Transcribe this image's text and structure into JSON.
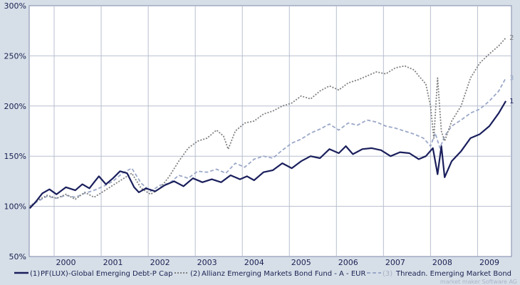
{
  "chart_data": {
    "type": "line",
    "ylim": [
      50,
      300
    ],
    "y_ticks": [
      50,
      100,
      150,
      200,
      250,
      300
    ],
    "y_tick_labels": [
      "50%",
      "100%",
      "150%",
      "200%",
      "250%",
      "300%"
    ],
    "y_gridlines": [
      100,
      150,
      200,
      250
    ],
    "xlim": [
      1999.72,
      2009.97
    ],
    "x_ticks": [
      2000,
      2001,
      2002,
      2003,
      2004,
      2005,
      2006,
      2007,
      2008,
      2009
    ],
    "x_tick_labels": [
      "2000",
      "2001",
      "2002",
      "2003",
      "2004",
      "2005",
      "2006",
      "2007",
      "2008",
      "2009"
    ],
    "x_gridlines": [
      2000.25,
      2001.25,
      2002.25,
      2003.25,
      2004.25,
      2005.25,
      2006.25,
      2007.25,
      2008.25,
      2009.25
    ],
    "grid": true,
    "legend_position": "bottom",
    "series": [
      {
        "name": "PF(LUX)-Global Emerging Debt-P Cap",
        "legend_prefix": "(1)",
        "end_label": "1",
        "color": "#1a1f5c",
        "dash": "solid",
        "x": [
          1999.73,
          1999.85,
          2000.0,
          2000.15,
          2000.3,
          2000.5,
          2000.7,
          2000.85,
          2001.0,
          2001.1,
          2001.2,
          2001.35,
          2001.5,
          2001.65,
          2001.8,
          2001.95,
          2002.05,
          2002.2,
          2002.4,
          2002.6,
          2002.8,
          2003.0,
          2003.2,
          2003.4,
          2003.6,
          2003.8,
          2004.0,
          2004.2,
          2004.35,
          2004.5,
          2004.7,
          2004.9,
          2005.1,
          2005.3,
          2005.5,
          2005.7,
          2005.9,
          2006.1,
          2006.3,
          2006.45,
          2006.6,
          2006.8,
          2007.0,
          2007.2,
          2007.4,
          2007.6,
          2007.8,
          2008.0,
          2008.15,
          2008.3,
          2008.4,
          2008.48,
          2008.55,
          2008.7,
          2008.9,
          2009.1,
          2009.3,
          2009.5,
          2009.7,
          2009.85
        ],
        "values": [
          98,
          104,
          113,
          117,
          112,
          119,
          116,
          122,
          118,
          124,
          130,
          122,
          128,
          135,
          133,
          119,
          114,
          118,
          115,
          121,
          125,
          120,
          128,
          124,
          127,
          124,
          131,
          127,
          130,
          126,
          134,
          136,
          143,
          138,
          145,
          150,
          148,
          157,
          153,
          160,
          152,
          157,
          158,
          156,
          150,
          154,
          153,
          147,
          150,
          158,
          132,
          160,
          129,
          145,
          155,
          168,
          172,
          180,
          193,
          205
        ]
      },
      {
        "name": "Allianz Emerging Markets Bond Fund - A - EUR",
        "legend_prefix": "(2)",
        "end_label": "2",
        "color": "#808080",
        "dash": "dotted",
        "x": [
          1999.73,
          1999.9,
          2000.1,
          2000.3,
          2000.5,
          2000.7,
          2000.9,
          2001.1,
          2001.3,
          2001.5,
          2001.7,
          2001.9,
          2002.1,
          2002.3,
          2002.5,
          2002.7,
          2002.9,
          2003.1,
          2003.3,
          2003.5,
          2003.7,
          2003.85,
          2003.95,
          2004.1,
          2004.3,
          2004.5,
          2004.7,
          2004.9,
          2005.1,
          2005.3,
          2005.5,
          2005.7,
          2005.9,
          2006.1,
          2006.3,
          2006.5,
          2006.7,
          2006.9,
          2007.1,
          2007.3,
          2007.5,
          2007.7,
          2007.9,
          2008.0,
          2008.15,
          2008.25,
          2008.32,
          2008.4,
          2008.48,
          2008.55,
          2008.7,
          2008.9,
          2009.1,
          2009.3,
          2009.5,
          2009.7,
          2009.85
        ],
        "values": [
          100,
          106,
          111,
          108,
          112,
          107,
          114,
          109,
          115,
          121,
          127,
          133,
          118,
          112,
          118,
          130,
          145,
          158,
          165,
          168,
          176,
          170,
          157,
          175,
          183,
          185,
          192,
          195,
          200,
          203,
          210,
          207,
          215,
          220,
          216,
          223,
          226,
          230,
          234,
          232,
          238,
          240,
          236,
          230,
          222,
          200,
          168,
          228,
          175,
          165,
          185,
          200,
          228,
          243,
          252,
          260,
          268
        ]
      },
      {
        "name": "Threadn. Emerging Market Bond",
        "legend_prefix": "(3)",
        "end_label": "3",
        "color": "#9ba8c8",
        "dash": "dashed",
        "x": [
          1999.73,
          1999.9,
          2000.1,
          2000.3,
          2000.5,
          2000.7,
          2000.9,
          2001.1,
          2001.3,
          2001.5,
          2001.7,
          2001.9,
          2002.1,
          2002.3,
          2002.5,
          2002.7,
          2002.9,
          2003.1,
          2003.3,
          2003.5,
          2003.7,
          2003.9,
          2004.1,
          2004.3,
          2004.5,
          2004.7,
          2004.9,
          2005.1,
          2005.3,
          2005.5,
          2005.7,
          2005.9,
          2006.1,
          2006.3,
          2006.5,
          2006.7,
          2006.9,
          2007.1,
          2007.3,
          2007.5,
          2007.7,
          2007.9,
          2008.1,
          2008.25,
          2008.35,
          2008.45,
          2008.55,
          2008.7,
          2008.9,
          2009.1,
          2009.3,
          2009.5,
          2009.7,
          2009.85
        ],
        "values": [
          100,
          105,
          110,
          108,
          111,
          109,
          113,
          116,
          120,
          125,
          133,
          138,
          123,
          115,
          121,
          123,
          131,
          128,
          135,
          134,
          137,
          133,
          143,
          139,
          147,
          150,
          148,
          156,
          163,
          167,
          173,
          177,
          182,
          176,
          183,
          181,
          186,
          184,
          180,
          178,
          175,
          172,
          168,
          160,
          173,
          158,
          170,
          180,
          186,
          193,
          197,
          205,
          215,
          228
        ]
      }
    ]
  },
  "credit": "market maker Software AG"
}
